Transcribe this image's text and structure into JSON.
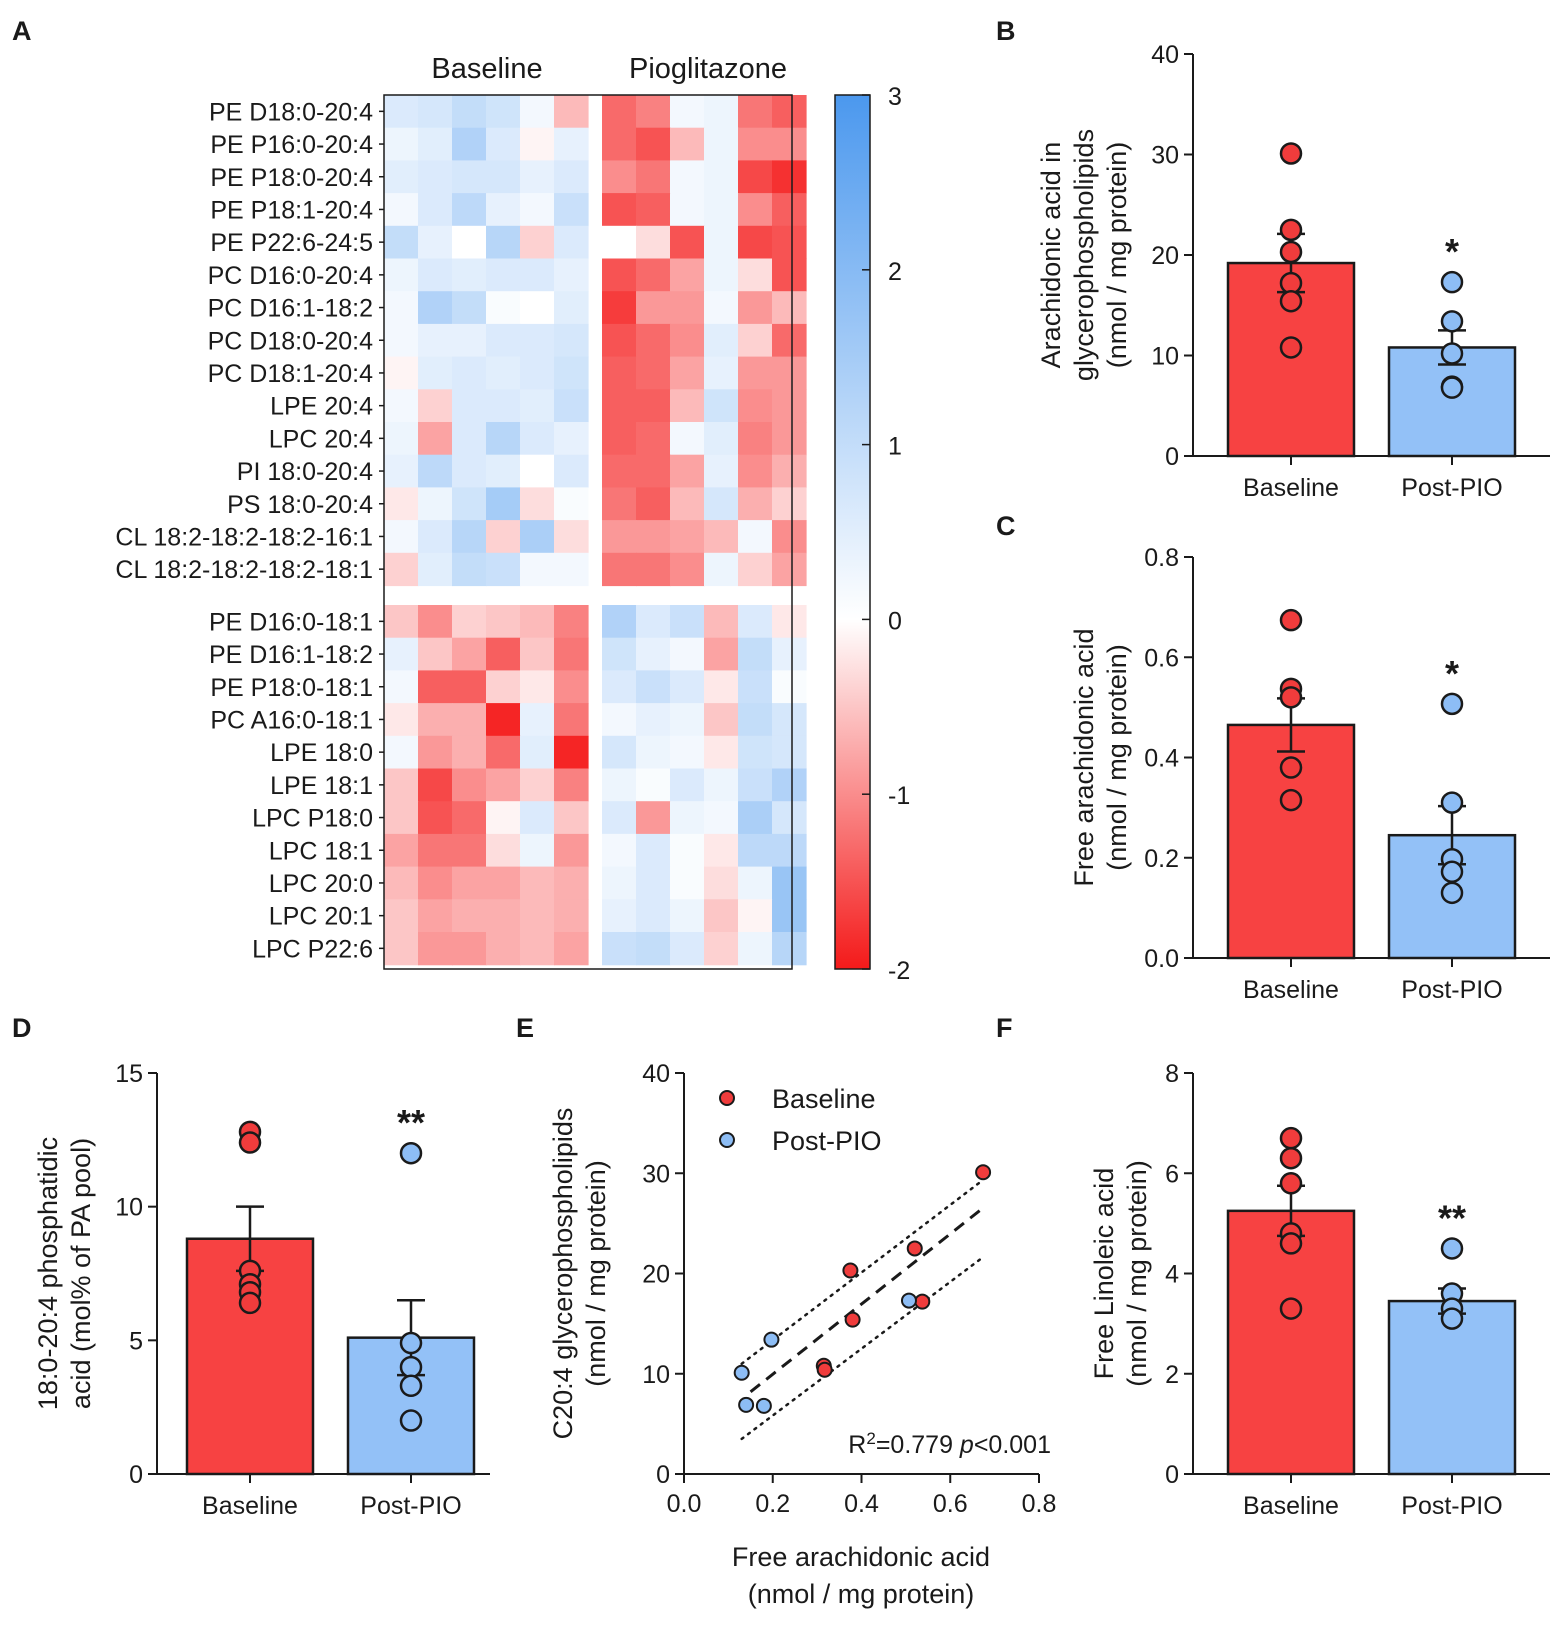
{
  "colors": {
    "baseline": "#f74242",
    "baseline_point": "#f03c3c",
    "post": "#93c1f7",
    "post_point": "#8dbdf5",
    "axis": "#1a1a1a",
    "heat_high": "#4b98ee",
    "heat_mid": "#ffffff",
    "heat_low": "#f41a1a"
  },
  "chart_data": [
    {
      "panel": "A",
      "type": "heatmap",
      "column_groups": [
        "Baseline",
        "Pioglitazone"
      ],
      "colorbar": {
        "min": -2,
        "max": 3,
        "ticks": [
          "3",
          "2",
          "1",
          "0",
          "-1",
          "-2"
        ]
      },
      "row_groups": [
        {
          "rows": [
            "PE D18:0-20:4",
            "PE P16:0-20:4",
            "PE P18:0-20:4",
            "PE P18:1-20:4",
            "PE P22:6-24:5",
            "PC D16:0-20:4",
            "PC D16:1-18:2",
            "PC D18:0-20:4",
            "PC D18:1-20:4",
            "LPE 20:4",
            "LPC 20:4",
            "PI 18:0-20:4",
            "PS 18:0-20:4",
            "CL 18:2-18:2-18:2-16:1",
            "CL 18:2-18:2-18:2-18:1"
          ],
          "values": [
            [
              0.6,
              0.7,
              1.0,
              0.8,
              0.2,
              -0.6,
              -1.3,
              -1.1,
              0.2,
              0.3,
              -1.2,
              -1.4
            ],
            [
              0.3,
              0.5,
              1.3,
              0.6,
              -0.1,
              0.4,
              -1.3,
              -1.5,
              -0.6,
              0.3,
              -1.0,
              -1.0
            ],
            [
              0.5,
              0.6,
              0.7,
              0.7,
              0.4,
              0.6,
              -1.0,
              -1.2,
              0.2,
              0.3,
              -1.6,
              -1.8
            ],
            [
              0.2,
              0.6,
              1.1,
              0.4,
              0.2,
              0.9,
              -1.5,
              -1.4,
              0.2,
              0.3,
              -1.0,
              -1.4
            ],
            [
              1.0,
              0.4,
              0.0,
              1.2,
              -0.4,
              0.6,
              0.0,
              -0.3,
              -1.5,
              0.3,
              -1.6,
              -1.5
            ],
            [
              0.3,
              0.6,
              0.5,
              0.6,
              0.6,
              0.4,
              -1.5,
              -1.3,
              -0.8,
              0.3,
              -0.3,
              -1.5
            ],
            [
              0.2,
              1.3,
              1.0,
              0.1,
              0.0,
              0.5,
              -1.7,
              -0.9,
              -0.9,
              0.2,
              -0.9,
              -0.6
            ],
            [
              0.2,
              0.4,
              0.4,
              0.6,
              0.6,
              0.7,
              -1.5,
              -1.3,
              -1.0,
              0.5,
              -0.4,
              -1.3
            ],
            [
              -0.1,
              0.5,
              0.6,
              0.5,
              0.6,
              0.8,
              -1.4,
              -1.3,
              -0.8,
              0.4,
              -0.9,
              -0.9
            ],
            [
              0.2,
              -0.4,
              0.6,
              0.6,
              0.5,
              0.9,
              -1.4,
              -1.4,
              -0.6,
              0.8,
              -1.0,
              -0.9
            ],
            [
              0.3,
              -0.8,
              0.6,
              1.2,
              0.6,
              0.4,
              -1.4,
              -1.3,
              0.2,
              0.5,
              -1.1,
              -0.9
            ],
            [
              0.4,
              1.1,
              0.6,
              0.5,
              0.0,
              0.6,
              -1.3,
              -1.3,
              -0.8,
              0.4,
              -1.0,
              -0.7
            ],
            [
              -0.2,
              0.3,
              0.8,
              1.5,
              -0.3,
              0.1,
              -1.2,
              -1.4,
              -0.6,
              0.7,
              -0.7,
              -0.4
            ],
            [
              0.2,
              0.6,
              1.2,
              -0.4,
              1.4,
              -0.3,
              -0.9,
              -0.9,
              -0.8,
              -0.6,
              0.2,
              -1.0
            ],
            [
              -0.4,
              0.5,
              1.0,
              0.9,
              0.2,
              0.2,
              -1.2,
              -1.2,
              -1.0,
              0.3,
              -0.4,
              -0.8
            ]
          ]
        },
        {
          "rows": [
            "PE D16:0-18:1",
            "PE D16:1-18:2",
            "PE P18:0-18:1",
            "PC A16:0-18:1",
            "LPE 18:0",
            "LPE 18:1",
            "LPC P18:0",
            "LPC 18:1",
            "LPC 20:0",
            "LPC 20:1",
            "LPC P22:6"
          ],
          "values": [
            [
              -0.5,
              -1.0,
              -0.4,
              -0.5,
              -0.6,
              -1.1,
              1.3,
              0.6,
              0.9,
              -0.6,
              0.6,
              -0.2
            ],
            [
              0.4,
              -0.5,
              -0.8,
              -1.4,
              -0.5,
              -1.2,
              0.8,
              0.4,
              0.2,
              -0.8,
              1.0,
              0.4
            ],
            [
              0.2,
              -1.4,
              -1.4,
              -0.4,
              -0.2,
              -1.0,
              0.6,
              0.9,
              0.6,
              -0.2,
              0.9,
              0.1
            ],
            [
              -0.2,
              -0.7,
              -0.7,
              -1.9,
              0.4,
              -1.2,
              0.2,
              0.4,
              0.3,
              -0.5,
              1.0,
              0.7
            ],
            [
              0.2,
              -0.9,
              -0.7,
              -1.3,
              0.5,
              -1.9,
              0.7,
              0.3,
              0.2,
              -0.2,
              0.8,
              0.7
            ],
            [
              -0.5,
              -1.6,
              -1.0,
              -0.8,
              -0.4,
              -1.1,
              0.3,
              0.1,
              0.6,
              0.3,
              0.9,
              1.3
            ],
            [
              -0.5,
              -1.5,
              -1.3,
              -0.1,
              0.6,
              -0.5,
              0.6,
              -0.9,
              0.3,
              0.2,
              1.4,
              0.7
            ],
            [
              -0.8,
              -1.2,
              -1.2,
              -0.3,
              0.3,
              -0.9,
              0.2,
              0.6,
              0.1,
              -0.2,
              1.1,
              1.1
            ],
            [
              -0.6,
              -1.0,
              -0.8,
              -0.8,
              -0.6,
              -0.7,
              0.3,
              0.6,
              0.1,
              -0.3,
              0.3,
              1.7
            ],
            [
              -0.5,
              -0.8,
              -0.7,
              -0.7,
              -0.6,
              -0.7,
              0.4,
              0.6,
              0.3,
              -0.5,
              -0.1,
              1.7
            ],
            [
              -0.5,
              -0.9,
              -0.9,
              -0.7,
              -0.6,
              -0.8,
              0.9,
              1.0,
              0.6,
              -0.4,
              0.3,
              1.2
            ]
          ]
        }
      ]
    },
    {
      "panel": "B",
      "type": "bar",
      "categories": [
        "Baseline",
        "Post-PIO"
      ],
      "values": [
        19.2,
        10.8
      ],
      "sem": [
        2.9,
        1.7
      ],
      "points": [
        [
          30.1,
          22.5,
          20.3,
          17.2,
          15.4,
          10.8
        ],
        [
          17.3,
          13.4,
          10.2,
          6.9,
          6.8
        ]
      ],
      "ylabel_lines": [
        "Arachidonic acid in",
        "glycerophospholipids",
        "(nmol / mg protein)"
      ],
      "ylim": [
        0,
        40
      ],
      "yticks": [
        "0",
        "10",
        "20",
        "30",
        "40"
      ],
      "significance": [
        "",
        "*"
      ]
    },
    {
      "panel": "C",
      "type": "bar",
      "categories": [
        "Baseline",
        "Post-PIO"
      ],
      "values": [
        0.465,
        0.245
      ],
      "sem": [
        0.053,
        0.058
      ],
      "points": [
        [
          0.674,
          0.537,
          0.52,
          0.38,
          0.315
        ],
        [
          0.507,
          0.31,
          0.197,
          0.172,
          0.13
        ]
      ],
      "ylabel_lines": [
        "Free arachidonic acid",
        "(nmol / mg protein)"
      ],
      "ylim": [
        0,
        0.8
      ],
      "yticks": [
        "0.0",
        "0.2",
        "0.4",
        "0.6",
        "0.8"
      ],
      "significance": [
        "",
        "*"
      ]
    },
    {
      "panel": "D",
      "type": "bar",
      "categories": [
        "Baseline",
        "Post-PIO"
      ],
      "values": [
        8.8,
        5.1
      ],
      "sem": [
        1.2,
        1.4
      ],
      "points": [
        [
          12.8,
          12.4,
          7.6,
          7.1,
          6.8,
          6.4
        ],
        [
          12.0,
          4.9,
          4.0,
          3.3,
          2.0
        ]
      ],
      "ylabel_lines": [
        "18:0-20:4 phosphatidic",
        "acid (mol% of PA pool)"
      ],
      "ylim": [
        0,
        15
      ],
      "yticks": [
        "0",
        "5",
        "10",
        "15"
      ],
      "significance": [
        "",
        "**"
      ]
    },
    {
      "panel": "E",
      "type": "scatter",
      "series": [
        {
          "name": "Baseline",
          "x": [
            0.674,
            0.52,
            0.537,
            0.375,
            0.38,
            0.315,
            0.317
          ],
          "y": [
            30.1,
            22.5,
            17.2,
            20.3,
            15.4,
            10.8,
            10.4
          ]
        },
        {
          "name": "Post-PIO",
          "x": [
            0.507,
            0.197,
            0.13,
            0.14,
            0.18
          ],
          "y": [
            17.3,
            13.4,
            10.1,
            6.9,
            6.8
          ]
        }
      ],
      "fit_line": {
        "x": [
          0.15,
          0.67
        ],
        "y": [
          8.2,
          26.4
        ]
      },
      "ci_upper": {
        "x": [
          0.13,
          0.67
        ],
        "y": [
          11.0,
          29.2
        ]
      },
      "ci_lower": {
        "x": [
          0.13,
          0.67
        ],
        "y": [
          3.5,
          21.5
        ]
      },
      "annotation": {
        "r2_prefix": "R",
        "r2_sup": "2",
        "r2_value": "=0.779 ",
        "p_symbol": "p",
        "p_text": "<0.001"
      },
      "xlabel_lines": [
        "Free arachidonic acid",
        "(nmol / mg protein)"
      ],
      "ylabel_lines": [
        "C20:4 glycerophospholipids",
        "(nmol / mg protein)"
      ],
      "xlim": [
        0,
        0.8
      ],
      "ylim": [
        0,
        40
      ],
      "xticks": [
        "0.0",
        "0.2",
        "0.4",
        "0.6",
        "0.8"
      ],
      "yticks": [
        "0",
        "10",
        "20",
        "30",
        "40"
      ]
    },
    {
      "panel": "F",
      "type": "bar",
      "categories": [
        "Baseline",
        "Post-PIO"
      ],
      "values": [
        5.25,
        3.45
      ],
      "sem": [
        0.5,
        0.25
      ],
      "points": [
        [
          6.7,
          6.3,
          5.8,
          4.8,
          4.6,
          3.3
        ],
        [
          4.5,
          3.6,
          3.3,
          3.1
        ]
      ],
      "ylabel_lines": [
        "Free Linoleic acid",
        "(nmol / mg protein)"
      ],
      "ylim": [
        0,
        8
      ],
      "yticks": [
        "0",
        "2",
        "4",
        "6",
        "8"
      ],
      "significance": [
        "",
        "**"
      ]
    }
  ]
}
